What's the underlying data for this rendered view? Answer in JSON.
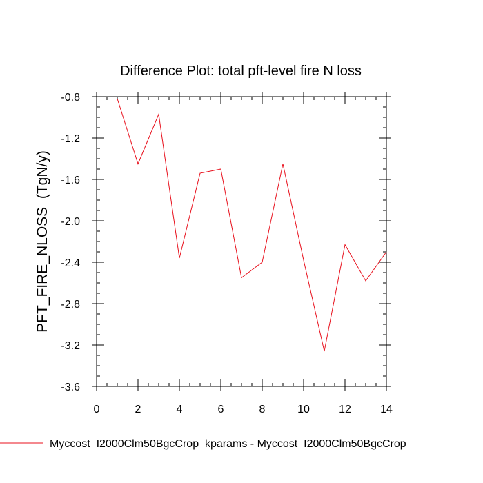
{
  "chart_data": {
    "type": "line",
    "title": "Difference Plot: total pft-level fire N loss",
    "xlabel": "",
    "ylabel": "PFT_FIRE_NLOSS  (TgN/y)",
    "xlim": [
      0,
      14
    ],
    "ylim": [
      -3.6,
      -0.8
    ],
    "x_ticks": [
      0,
      2,
      4,
      6,
      8,
      10,
      12,
      14
    ],
    "x_tick_labels": [
      "0",
      "2",
      "4",
      "6",
      "8",
      "10",
      "12",
      "14"
    ],
    "y_ticks": [
      -0.8,
      -1.2,
      -1.6,
      -2.0,
      -2.4,
      -2.8,
      -3.2,
      -3.6
    ],
    "y_tick_labels": [
      "-0.8",
      "-1.2",
      "-1.6",
      "-2.0",
      "-2.4",
      "-2.8",
      "-3.2",
      "-3.6"
    ],
    "grid": false,
    "legend_position": "bottom",
    "series": [
      {
        "name": "Myccost_I2000Clm50BgcCrop_kparams - Myccost_I2000Clm50BgcCrop_",
        "color": "#e8101c",
        "x": [
          1,
          2,
          3,
          4,
          5,
          6,
          7,
          8,
          9,
          10,
          11,
          12,
          13,
          14
        ],
        "values": [
          -0.82,
          -1.45,
          -0.97,
          -2.36,
          -1.54,
          -1.5,
          -2.55,
          -2.4,
          -1.45,
          -2.38,
          -3.26,
          -2.23,
          -2.58,
          -2.3
        ]
      }
    ]
  }
}
